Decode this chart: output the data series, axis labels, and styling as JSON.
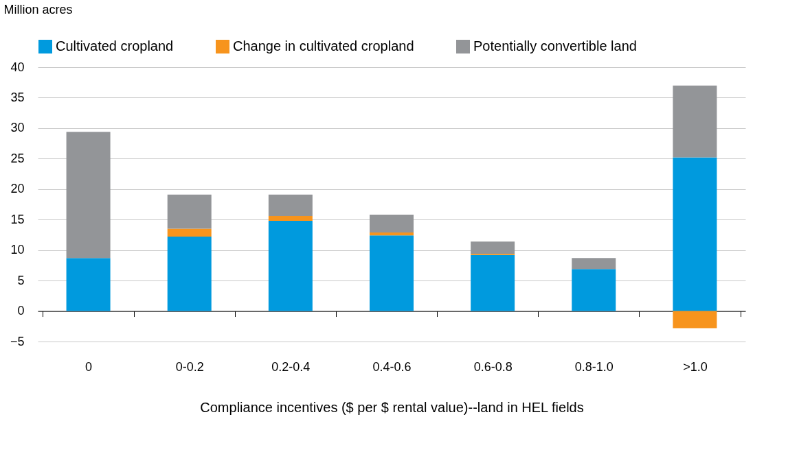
{
  "chart_data": {
    "type": "bar",
    "stacked": true,
    "ylabel": "Million acres",
    "xlabel": "Compliance incentives ($ per $ rental value)--land in HEL fields",
    "categories": [
      "0",
      "0-0.2",
      "0.2-0.4",
      "0.4-0.6",
      "0.6-0.8",
      "0.8-1.0",
      ">1.0"
    ],
    "series": [
      {
        "name": "Cultivated cropland",
        "color": "#009ade",
        "values": [
          8.7,
          12.2,
          14.8,
          12.4,
          9.2,
          6.9,
          25.2
        ]
      },
      {
        "name": "Change in cultivated cropland",
        "color": "#f7941d",
        "values": [
          null,
          1.3,
          0.8,
          0.5,
          0.2,
          null,
          -2.8
        ]
      },
      {
        "name": "Potentially convertible land",
        "color": "#939598",
        "values": [
          20.7,
          5.6,
          3.5,
          2.9,
          2.0,
          1.8,
          11.8
        ]
      }
    ],
    "ylim": [
      -5,
      40
    ],
    "yticks": [
      -5,
      0,
      5,
      10,
      15,
      20,
      25,
      30,
      35,
      40
    ],
    "grid": "y",
    "legend": "top"
  }
}
